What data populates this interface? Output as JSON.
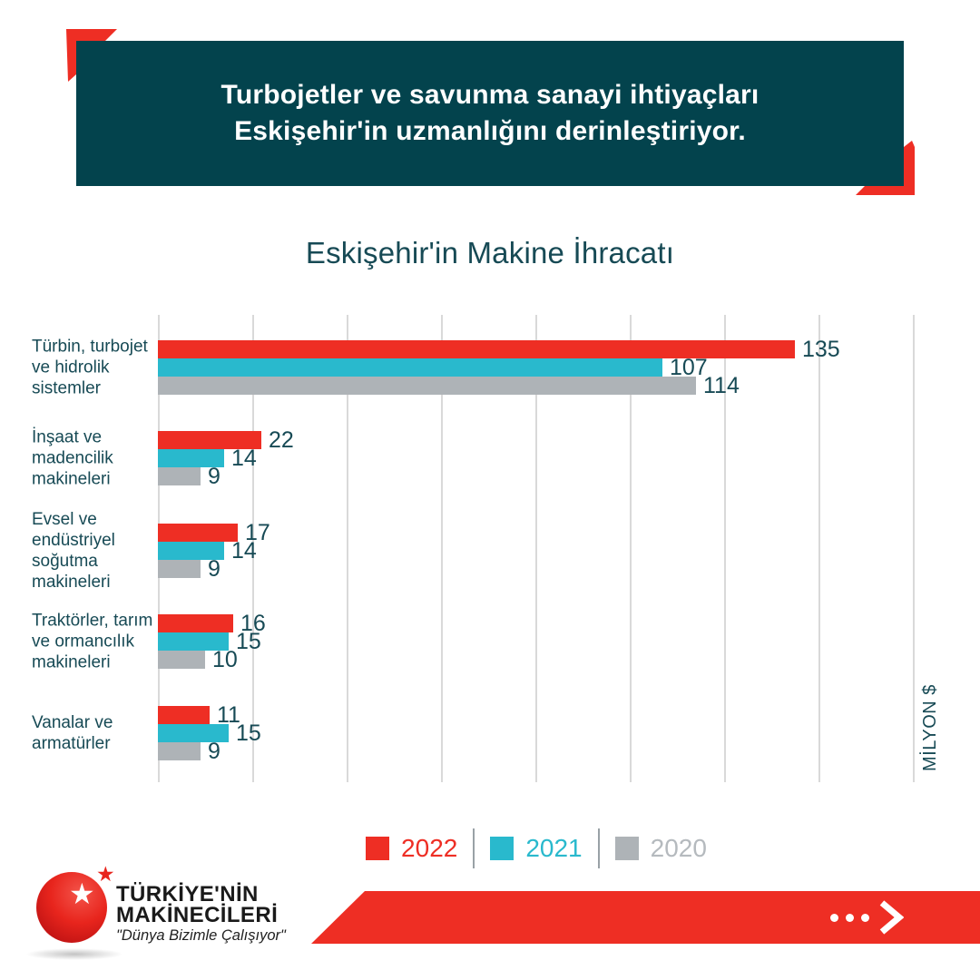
{
  "header": {
    "line1": "Turbojetler ve savunma sanayi ihtiyaçları",
    "line2": "Eskişehir'in uzmanlığını derinleştiriyor.",
    "bg_color": "#03434d",
    "accent_color": "#ee2e24"
  },
  "chart_data": {
    "type": "bar",
    "orientation": "horizontal",
    "title": "Eskişehir'in Makine İhracatı",
    "value_unit_label": "MİLYON $",
    "xlim": [
      0,
      160
    ],
    "gridline_step": 20,
    "grid_on": true,
    "legend_position": "bottom",
    "categories": [
      "Türbin, turbojet ve hidrolik sistemler",
      "İnşaat ve madencilik makineleri",
      "Evsel ve endüstriyel soğutma makineleri",
      "Traktörler, tarım ve ormancılık makineleri",
      "Vanalar ve armatürler"
    ],
    "category_label_lines": [
      [
        "Türbin, turbojet",
        "ve hidrolik",
        "sistemler"
      ],
      [
        "İnşaat ve",
        "madencilik",
        "makineleri"
      ],
      [
        "Evsel ve",
        "endüstriyel",
        "soğutma",
        "makineleri"
      ],
      [
        "Traktörler, tarım",
        "ve ormancılık",
        "makineleri"
      ],
      [
        "Vanalar ve",
        "armatürler"
      ]
    ],
    "series": [
      {
        "name": "2022",
        "color": "#ee2e24",
        "label_color": "#ee2e24",
        "values": [
          135,
          22,
          17,
          16,
          11
        ]
      },
      {
        "name": "2021",
        "color": "#29b9cd",
        "label_color": "#29b9cd",
        "values": [
          107,
          14,
          14,
          15,
          15
        ]
      },
      {
        "name": "2020",
        "color": "#aeb3b7",
        "label_color": "#b5babe",
        "values": [
          114,
          9,
          9,
          10,
          9
        ]
      }
    ]
  },
  "colors": {
    "text_dark_teal": "#174a55",
    "gridline": "#d9d9d9",
    "legend_separator": "#99a1a6"
  },
  "footer": {
    "brand_name_line1": "TÜRKİYE'NİN",
    "brand_name_line2": "MAKİNECİLERİ",
    "slogan": "\"Dünya Bizimle Çalışıyor\"",
    "banner_color": "#ee2e24",
    "arrow_icon": "dots-chevron-right"
  }
}
